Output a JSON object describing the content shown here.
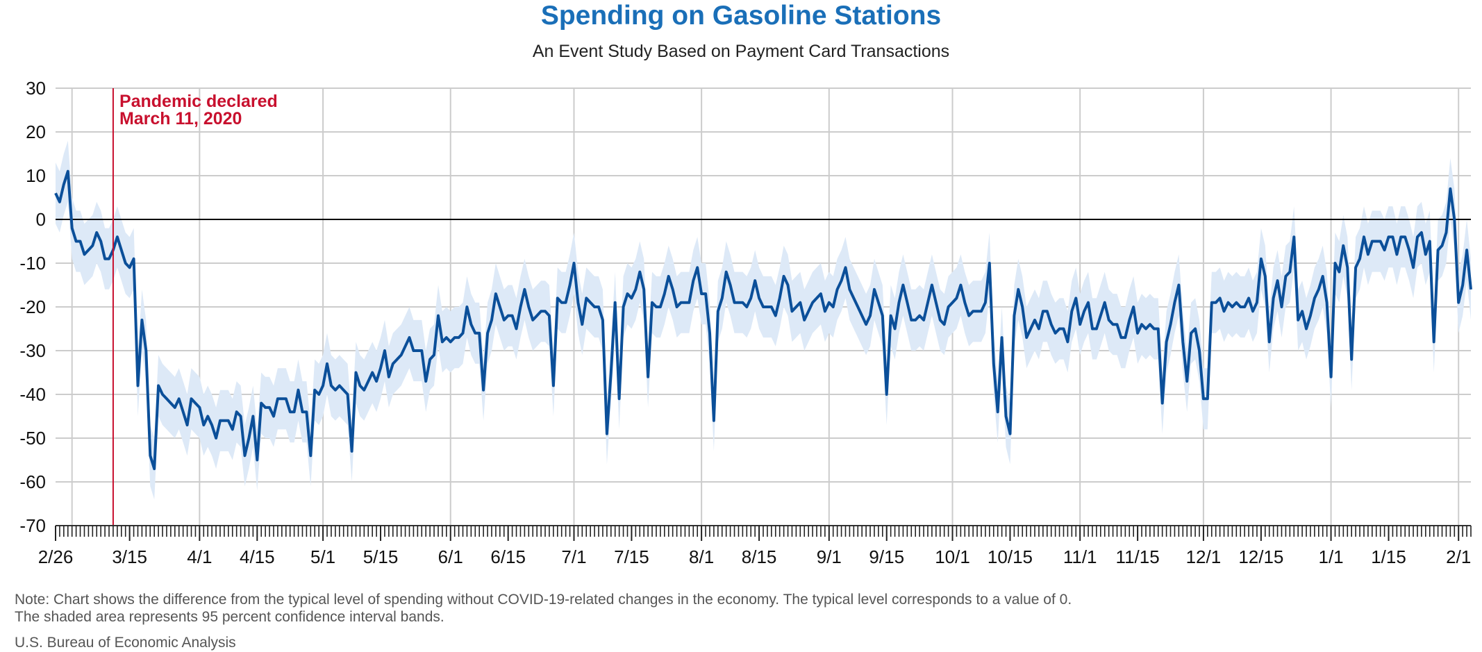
{
  "title": "Spending on Gasoline Stations",
  "subtitle": "An Event Study Based on Payment Card Transactions",
  "note": {
    "line1": "Note: Chart shows the difference from the typical level of spending without COVID-19-related changes in the economy. The typical level corresponds to a value of 0.",
    "line2": "The shaded area represents 95 percent confidence interval bands."
  },
  "source": "U.S. Bureau of Economic Analysis",
  "colors": {
    "title": "#1a6fb8",
    "line": "#0b4f99",
    "band": "#dde9f7",
    "annotation": "#c8102e",
    "grid": "#cccccc",
    "zero_line": "#000000"
  },
  "chart_data": {
    "type": "line",
    "x_type": "date",
    "x_start": "2020-02-26",
    "x_end": "2021-02-04",
    "ylim": [
      -70,
      30
    ],
    "yticks": [
      30,
      20,
      10,
      0,
      -10,
      -20,
      -30,
      -40,
      -50,
      -60,
      -70
    ],
    "ytick_labels": [
      "30",
      "20",
      "10",
      "0",
      "-10",
      "-20",
      "-30",
      "-40",
      "-50",
      "-60",
      "-70"
    ],
    "xticks": [
      {
        "date": "2020-02-26",
        "label": "2/26"
      },
      {
        "date": "2020-03-15",
        "label": "3/15"
      },
      {
        "date": "2020-04-01",
        "label": "4/1"
      },
      {
        "date": "2020-04-15",
        "label": "4/15"
      },
      {
        "date": "2020-05-01",
        "label": "5/1"
      },
      {
        "date": "2020-05-15",
        "label": "5/15"
      },
      {
        "date": "2020-06-01",
        "label": "6/1"
      },
      {
        "date": "2020-06-15",
        "label": "6/15"
      },
      {
        "date": "2020-07-01",
        "label": "7/1"
      },
      {
        "date": "2020-07-15",
        "label": "7/15"
      },
      {
        "date": "2020-08-01",
        "label": "8/1"
      },
      {
        "date": "2020-08-15",
        "label": "8/15"
      },
      {
        "date": "2020-09-01",
        "label": "9/1"
      },
      {
        "date": "2020-09-15",
        "label": "9/15"
      },
      {
        "date": "2020-10-01",
        "label": "10/1"
      },
      {
        "date": "2020-10-15",
        "label": "10/15"
      },
      {
        "date": "2020-11-01",
        "label": "11/1"
      },
      {
        "date": "2020-11-15",
        "label": "11/15"
      },
      {
        "date": "2020-12-01",
        "label": "12/1"
      },
      {
        "date": "2020-12-15",
        "label": "12/15"
      },
      {
        "date": "2021-01-01",
        "label": "1/1"
      },
      {
        "date": "2021-01-15",
        "label": "1/15"
      },
      {
        "date": "2021-02-01",
        "label": "2/1"
      }
    ],
    "vertical_grid_dates": [
      "2020-03-01",
      "2020-04-01",
      "2020-05-01",
      "2020-06-01",
      "2020-07-01",
      "2020-08-01",
      "2020-09-01",
      "2020-10-01",
      "2020-11-01",
      "2020-12-01",
      "2021-01-01",
      "2021-02-01"
    ],
    "annotation": {
      "date": "2020-03-11",
      "line1": "Pandemic declared",
      "line2": "March 11, 2020"
    },
    "series": [
      {
        "values": [
          6,
          4,
          8,
          11,
          -2,
          -5,
          -5,
          -8,
          -7,
          -6,
          -3,
          -5,
          -9,
          -9,
          -7,
          -4,
          -7,
          -10,
          -11,
          -9,
          -38,
          -23,
          -30,
          -54,
          -57,
          -38,
          -40,
          -41,
          -42,
          -43,
          -41,
          -44,
          -47,
          -41,
          -42,
          -43,
          -47,
          -45,
          -47,
          -50,
          -46,
          -46,
          -46,
          -48,
          -44,
          -45,
          -54,
          -50,
          -45,
          -55,
          -42,
          -43,
          -43,
          -45,
          -41,
          -41,
          -41,
          -44,
          -44,
          -39,
          -44,
          -44,
          -54,
          -39,
          -40,
          -38,
          -33,
          -38,
          -39,
          -38,
          -39,
          -40,
          -53,
          -35,
          -38,
          -39,
          -37,
          -35,
          -37,
          -34,
          -30,
          -36,
          -33,
          -32,
          -31,
          -29,
          -27,
          -30,
          -30,
          -30,
          -37,
          -32,
          -31,
          -22,
          -28,
          -27,
          -28,
          -27,
          -27,
          -26,
          -20,
          -24,
          -26,
          -26,
          -39,
          -26,
          -23,
          -17,
          -20,
          -23,
          -22,
          -22,
          -25,
          -20,
          -16,
          -20,
          -23,
          -22,
          -21,
          -21,
          -22,
          -38,
          -18,
          -19,
          -19,
          -15,
          -10,
          -19,
          -24,
          -18,
          -19,
          -20,
          -20,
          -23,
          -49,
          -35,
          -19,
          -41,
          -20,
          -17,
          -18,
          -16,
          -12,
          -16,
          -36,
          -19,
          -20,
          -20,
          -17,
          -13,
          -16,
          -20,
          -19,
          -19,
          -19,
          -14,
          -11,
          -17,
          -17,
          -26,
          -46,
          -21,
          -18,
          -12,
          -15,
          -19,
          -19,
          -19,
          -20,
          -18,
          -14,
          -18,
          -20,
          -20,
          -20,
          -22,
          -18,
          -13,
          -15,
          -21,
          -20,
          -19,
          -23,
          -21,
          -19,
          -18,
          -17,
          -21,
          -19,
          -20,
          -16,
          -14,
          -11,
          -16,
          -18,
          -20,
          -22,
          -24,
          -22,
          -16,
          -19,
          -22,
          -40,
          -22,
          -25,
          -19,
          -15,
          -19,
          -23,
          -23,
          -22,
          -23,
          -19,
          -15,
          -19,
          -23,
          -24,
          -20,
          -19,
          -18,
          -15,
          -19,
          -22,
          -21,
          -21,
          -21,
          -19,
          -10,
          -33,
          -44,
          -27,
          -45,
          -49,
          -22,
          -16,
          -20,
          -27,
          -25,
          -23,
          -25,
          -21,
          -21,
          -24,
          -26,
          -25,
          -25,
          -28,
          -21,
          -18,
          -24,
          -21,
          -19,
          -25,
          -25,
          -22,
          -19,
          -23,
          -24,
          -24,
          -27,
          -27,
          -23,
          -20,
          -26,
          -24,
          -25,
          -24,
          -25,
          -25,
          -42,
          -28,
          -24,
          -19,
          -15,
          -28,
          -37,
          -26,
          -25,
          -30,
          -41,
          -41,
          -19,
          -19,
          -18,
          -21,
          -19,
          -20,
          -19,
          -20,
          -20,
          -18,
          -21,
          -19,
          -9,
          -13,
          -28,
          -18,
          -14,
          -20,
          -13,
          -12,
          -4,
          -23,
          -21,
          -25,
          -22,
          -18,
          -16,
          -13,
          -19,
          -36,
          -10,
          -12,
          -6,
          -11,
          -32,
          -11,
          -9,
          -4,
          -8,
          -5,
          -5,
          -5,
          -7,
          -4,
          -4,
          -8,
          -4,
          -4,
          -7,
          -11,
          -4,
          -3,
          -8,
          -5,
          -28,
          -7,
          -6,
          -3,
          7,
          0,
          -19,
          -15,
          -7,
          -16
        ]
      }
    ],
    "band_halfwidth": 7
  }
}
